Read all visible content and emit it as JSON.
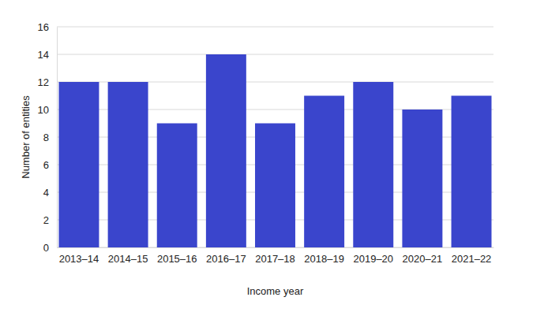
{
  "chart_data": {
    "type": "bar",
    "x_label": "Income year",
    "y_label": "Number of entities",
    "categories": [
      "2013–14",
      "2014–15",
      "2015–16",
      "2016–17",
      "2017–18",
      "2018–19",
      "2019–20",
      "2020–21",
      "2021–22"
    ],
    "values": [
      12,
      12,
      9,
      14,
      9,
      11,
      12,
      10,
      11
    ],
    "color": "#3a45cc",
    "ylim": [
      0,
      16
    ],
    "yticks": [
      0,
      2,
      4,
      6,
      8,
      10,
      12,
      14,
      16
    ],
    "grid": true
  }
}
